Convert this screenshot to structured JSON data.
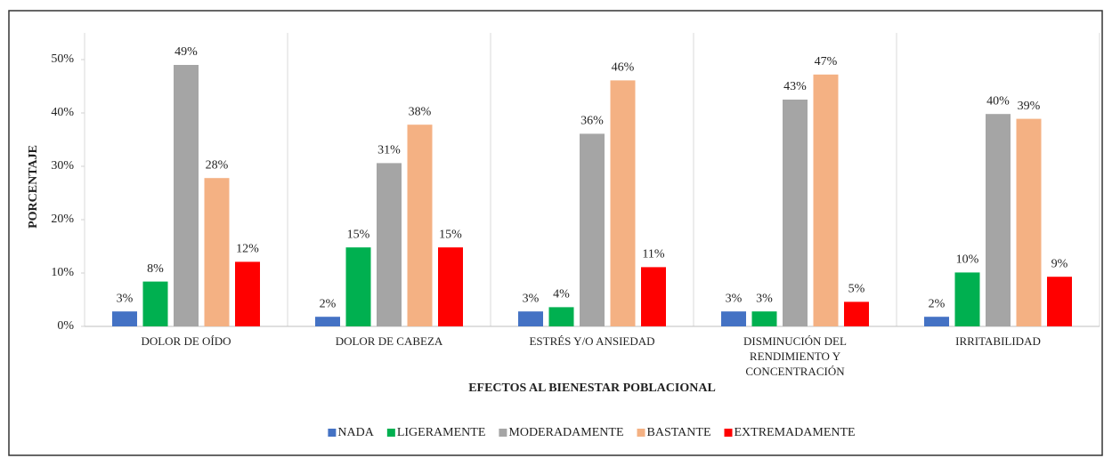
{
  "chart_data": {
    "type": "bar",
    "x_label": "EFECTOS AL BIENESTAR POBLACIONAL",
    "y_label": "PORCENTAJE",
    "categories": [
      "DOLOR DE OÍDO",
      "DOLOR DE CABEZA",
      "ESTRÉS Y/O ANSIEDAD",
      "DISMINUCIÓN DEL RENDIMIENTO Y CONCENTRACIÓN",
      "IRRITABILIDAD"
    ],
    "series": [
      {
        "name": "NADA",
        "color": "#4472c4",
        "values": [
          2.8,
          1.8,
          2.8,
          2.8,
          1.8
        ],
        "value_labels": [
          "3%",
          "2%",
          "3%",
          "3%",
          "2%"
        ]
      },
      {
        "name": "LIGERAMENTE",
        "color": "#00b050",
        "values": [
          8.4,
          14.8,
          3.6,
          2.8,
          10.1
        ],
        "value_labels": [
          "8%",
          "15%",
          "4%",
          "3%",
          "10%"
        ]
      },
      {
        "name": "MODERADAMENTE",
        "color": "#a5a5a5",
        "values": [
          49,
          30.6,
          36.1,
          42.5,
          39.8
        ],
        "value_labels": [
          "49%",
          "31%",
          "36%",
          "43%",
          "40%"
        ]
      },
      {
        "name": "BASTANTE",
        "color": "#f4b183",
        "values": [
          27.8,
          37.8,
          46.1,
          47.2,
          38.9
        ],
        "value_labels": [
          "28%",
          "38%",
          "46%",
          "47%",
          "39%"
        ]
      },
      {
        "name": "EXTREMADAMENTE",
        "color": "#ff0000",
        "values": [
          12.1,
          14.8,
          11.1,
          4.6,
          9.3
        ],
        "value_labels": [
          "12%",
          "15%",
          "11%",
          "5%",
          "9%"
        ]
      }
    ],
    "ylim": [
      0,
      55
    ],
    "yticks": [
      {
        "value": 0,
        "label": "0%"
      },
      {
        "value": 10,
        "label": "10%"
      },
      {
        "value": 20,
        "label": "20%"
      },
      {
        "value": 30,
        "label": "30%"
      },
      {
        "value": 40,
        "label": "40%"
      },
      {
        "value": 50,
        "label": "50%"
      }
    ],
    "legend": "bottom"
  }
}
